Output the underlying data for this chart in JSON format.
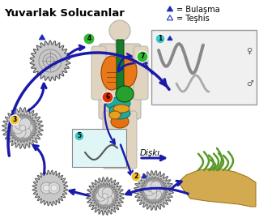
{
  "title": "Yuvarlak Solucanlar",
  "legend": [
    {
      "filled": true,
      "label": "= Bulaşma"
    },
    {
      "filled": false,
      "label": "= Teşhis"
    }
  ],
  "node_colors": {
    "1": "#40c8c8",
    "2": "#f0c030",
    "3": "#f0c030",
    "4": "#30b830",
    "5": "#40c8c8",
    "6": "#e03000",
    "7": "#30b830"
  },
  "arrow_color": "#1a1aaa",
  "dışkı": "Dişkı",
  "female_symbol": "♀",
  "male_symbol": "♂"
}
